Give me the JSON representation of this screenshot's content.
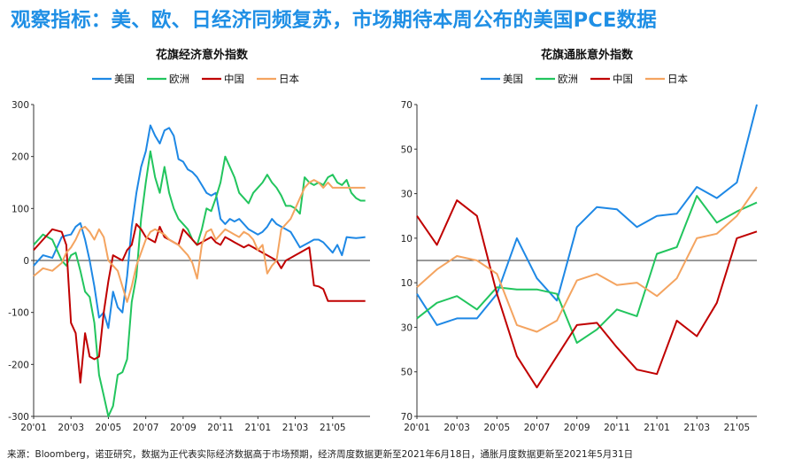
{
  "page": {
    "title": "观察指标：美、欧、日经济同频复苏，市场期待本周公布的美国PCE数据",
    "source": "来源：Bloomberg，诺亚研究，数据为正代表实际经济数据高于市场预期，经济周度数据更新至2021年6月18日，通胀月度数据更新至2021年5月31日"
  },
  "colors": {
    "us": "#1e88e5",
    "eu": "#22c55e",
    "cn": "#c00000",
    "jp": "#f4a460"
  },
  "chart_data": [
    {
      "type": "line",
      "title": "花旗经济意外指数",
      "xlabel": "",
      "ylabel": "",
      "ylim": [
        -300,
        300
      ],
      "yticks": [
        -300,
        -200,
        -100,
        0,
        100,
        200,
        300
      ],
      "xticks": [
        {
          "x": 0,
          "label": "20'01"
        },
        {
          "x": 8,
          "label": "20'03"
        },
        {
          "x": 16,
          "label": "20'05"
        },
        {
          "x": 24,
          "label": "20'07"
        },
        {
          "x": 32,
          "label": "20'09"
        },
        {
          "x": 40,
          "label": "20'11"
        },
        {
          "x": 48,
          "label": "21'01"
        },
        {
          "x": 56,
          "label": "21'03"
        },
        {
          "x": 64,
          "label": "21'05"
        }
      ],
      "xlim": [
        0,
        72
      ],
      "legend": "top",
      "grid": false,
      "series": [
        {
          "name": "美国",
          "color": "#1e88e5",
          "x": [
            0,
            2,
            4,
            6,
            7,
            8,
            9,
            10,
            11,
            12,
            13,
            14,
            15,
            16,
            17,
            18,
            19,
            20,
            21,
            22,
            23,
            24,
            25,
            26,
            27,
            28,
            29,
            30,
            31,
            32,
            33,
            34,
            35,
            36,
            37,
            38,
            39,
            40,
            41,
            42,
            43,
            44,
            45,
            46,
            47,
            48,
            49,
            50,
            51,
            52,
            53,
            54,
            55,
            56,
            57,
            58,
            59,
            60,
            61,
            62,
            63,
            64,
            65,
            66,
            67,
            68,
            69,
            70,
            71
          ],
          "values": [
            -10,
            10,
            5,
            45,
            48,
            50,
            65,
            72,
            40,
            0,
            -50,
            -110,
            -100,
            -130,
            -60,
            -90,
            -100,
            -30,
            65,
            130,
            180,
            210,
            260,
            240,
            225,
            250,
            255,
            240,
            195,
            190,
            175,
            170,
            160,
            145,
            130,
            125,
            130,
            80,
            70,
            80,
            75,
            80,
            70,
            60,
            55,
            50,
            55,
            65,
            80,
            70,
            65,
            60,
            55,
            40,
            25,
            30,
            35,
            40,
            40,
            35,
            25,
            15,
            30,
            10,
            45,
            44,
            43,
            44,
            45
          ]
        },
        {
          "name": "欧洲",
          "color": "#22c55e",
          "x": [
            0,
            2,
            4,
            6,
            7,
            8,
            9,
            10,
            11,
            12,
            13,
            14,
            15,
            16,
            17,
            18,
            19,
            20,
            21,
            22,
            23,
            24,
            25,
            26,
            27,
            28,
            29,
            30,
            31,
            32,
            33,
            34,
            35,
            36,
            37,
            38,
            39,
            40,
            41,
            42,
            43,
            44,
            45,
            46,
            47,
            48,
            49,
            50,
            51,
            52,
            53,
            54,
            55,
            56,
            57,
            58,
            59,
            60,
            61,
            62,
            63,
            64,
            65,
            66,
            67,
            68,
            69,
            70,
            71
          ],
          "values": [
            30,
            50,
            40,
            0,
            -10,
            10,
            15,
            -20,
            -60,
            -70,
            -120,
            -220,
            -260,
            -300,
            -280,
            -220,
            -215,
            -190,
            -80,
            -30,
            80,
            150,
            210,
            160,
            130,
            180,
            130,
            100,
            80,
            70,
            60,
            40,
            30,
            60,
            100,
            95,
            120,
            150,
            200,
            180,
            160,
            130,
            120,
            110,
            130,
            140,
            150,
            165,
            150,
            140,
            125,
            105,
            105,
            100,
            90,
            160,
            150,
            145,
            150,
            145,
            160,
            165,
            150,
            145,
            155,
            130,
            120,
            115,
            115
          ]
        },
        {
          "name": "中国",
          "color": "#c00000",
          "x": [
            0,
            2,
            4,
            6,
            7,
            8,
            9,
            10,
            11,
            12,
            13,
            14,
            15,
            16,
            17,
            18,
            19,
            20,
            21,
            22,
            23,
            24,
            25,
            26,
            27,
            28,
            29,
            30,
            31,
            32,
            33,
            34,
            35,
            36,
            37,
            38,
            39,
            40,
            41,
            42,
            43,
            44,
            45,
            46,
            47,
            48,
            49,
            50,
            51,
            52,
            53,
            54,
            55,
            56,
            57,
            58,
            59,
            60,
            61,
            62,
            63,
            64,
            65,
            66,
            67,
            68,
            69,
            70,
            71
          ],
          "values": [
            20,
            40,
            60,
            55,
            30,
            -120,
            -140,
            -235,
            -140,
            -185,
            -190,
            -185,
            -100,
            -40,
            10,
            5,
            0,
            20,
            30,
            70,
            60,
            45,
            40,
            35,
            65,
            45,
            40,
            35,
            30,
            60,
            50,
            40,
            30,
            35,
            40,
            45,
            35,
            30,
            45,
            40,
            35,
            30,
            25,
            30,
            25,
            20,
            15,
            10,
            5,
            0,
            -15,
            0,
            5,
            10,
            15,
            20,
            25,
            -48,
            -50,
            -55,
            -78,
            -78,
            -78,
            -78,
            -78,
            -78,
            -78,
            -78,
            -78
          ]
        },
        {
          "name": "日本",
          "color": "#f4a460",
          "x": [
            0,
            2,
            4,
            6,
            7,
            8,
            9,
            10,
            11,
            12,
            13,
            14,
            15,
            16,
            17,
            18,
            19,
            20,
            21,
            22,
            23,
            24,
            25,
            26,
            27,
            28,
            29,
            30,
            31,
            32,
            33,
            34,
            35,
            36,
            37,
            38,
            39,
            40,
            41,
            42,
            43,
            44,
            45,
            46,
            47,
            48,
            49,
            50,
            51,
            52,
            53,
            54,
            55,
            56,
            57,
            58,
            59,
            60,
            61,
            62,
            63,
            64,
            65,
            66,
            67,
            68,
            69,
            70,
            71
          ],
          "values": [
            -30,
            -15,
            -20,
            -5,
            15,
            25,
            40,
            60,
            65,
            55,
            40,
            60,
            45,
            0,
            -10,
            -20,
            -50,
            -80,
            -50,
            -10,
            15,
            40,
            55,
            60,
            55,
            50,
            40,
            35,
            30,
            20,
            10,
            -5,
            -35,
            30,
            55,
            60,
            40,
            50,
            60,
            55,
            50,
            45,
            55,
            50,
            40,
            20,
            30,
            -25,
            -10,
            0,
            60,
            70,
            80,
            100,
            120,
            140,
            150,
            155,
            150,
            140,
            150,
            140,
            140,
            140,
            140,
            140,
            140,
            140,
            140
          ]
        }
      ]
    },
    {
      "type": "line",
      "title": "花旗通胀意外指数",
      "xlabel": "",
      "ylabel": "",
      "ylim": [
        -70,
        70
      ],
      "yticks": [
        -70,
        -50,
        -30,
        -10,
        10,
        30,
        50,
        70
      ],
      "xticks": [
        {
          "x": 0,
          "label": "20'01"
        },
        {
          "x": 2,
          "label": "20'03"
        },
        {
          "x": 4,
          "label": "20'05"
        },
        {
          "x": 6,
          "label": "20'07"
        },
        {
          "x": 8,
          "label": "20'09"
        },
        {
          "x": 10,
          "label": "20'11"
        },
        {
          "x": 12,
          "label": "21'01"
        },
        {
          "x": 14,
          "label": "21'03"
        },
        {
          "x": 16,
          "label": "21'05"
        }
      ],
      "xlim": [
        0,
        17
      ],
      "legend": "top",
      "grid": false,
      "series": [
        {
          "name": "美国",
          "color": "#1e88e5",
          "x": [
            0,
            1,
            2,
            3,
            4,
            5,
            6,
            7,
            8,
            9,
            10,
            11,
            12,
            13,
            14,
            15,
            16,
            17
          ],
          "values": [
            -15,
            -29,
            -26,
            -26,
            -15,
            10,
            -8,
            -18,
            15,
            24,
            23,
            15,
            20,
            21,
            33,
            28,
            35,
            70
          ]
        },
        {
          "name": "欧洲",
          "color": "#22c55e",
          "x": [
            0,
            1,
            2,
            3,
            4,
            5,
            6,
            7,
            8,
            9,
            10,
            11,
            12,
            13,
            14,
            15,
            16,
            17
          ],
          "values": [
            -26,
            -19,
            -16,
            -22,
            -12,
            -13,
            -13,
            -15,
            -37,
            -31,
            -22,
            -25,
            3,
            6,
            29,
            17,
            22,
            26
          ]
        },
        {
          "name": "中国",
          "color": "#c00000",
          "x": [
            0,
            1,
            2,
            3,
            4,
            5,
            6,
            7,
            8,
            9,
            10,
            11,
            12,
            13,
            14,
            15,
            16,
            17
          ],
          "values": [
            20,
            7,
            27,
            20,
            -15,
            -43,
            -57,
            -43,
            -29,
            -28,
            -39,
            -49,
            -51,
            -27,
            -34,
            -19,
            10,
            13
          ]
        },
        {
          "name": "日本",
          "color": "#f4a460",
          "x": [
            0,
            1,
            2,
            3,
            4,
            5,
            6,
            7,
            8,
            9,
            10,
            11,
            12,
            13,
            14,
            15,
            16,
            17
          ],
          "values": [
            -12,
            -4,
            2,
            0,
            -6,
            -29,
            -32,
            -27,
            -9,
            -6,
            -11,
            -10,
            -16,
            -8,
            10,
            12,
            20,
            33
          ]
        }
      ]
    }
  ]
}
